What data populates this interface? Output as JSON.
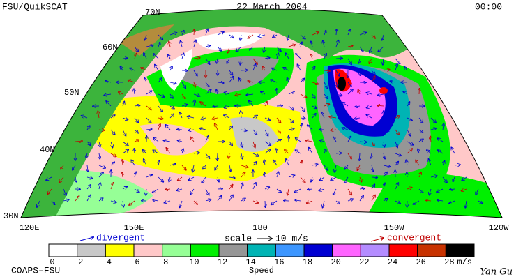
{
  "header": {
    "left": "FSU/QuikSCAT",
    "center": "22 March 2004",
    "right": "00:00"
  },
  "map": {
    "lat_labels": [
      "70N",
      "60N",
      "50N",
      "40N",
      "30N"
    ],
    "lon_labels": [
      "120E",
      "150E",
      "180",
      "150W",
      "120W"
    ]
  },
  "legend": {
    "divergent": "divergent",
    "scale": "scale",
    "scale_value": "10 m/s",
    "convergent": "convergent"
  },
  "colorbar": {
    "ticks": [
      0,
      2,
      4,
      6,
      8,
      10,
      12,
      14,
      16,
      18,
      20,
      22,
      24,
      26,
      28
    ],
    "colors": [
      "#ffffff",
      "#c8c8c8",
      "#ffff00",
      "#ffc8c8",
      "#96ff96",
      "#00f000",
      "#969696",
      "#00b4b4",
      "#3c96ff",
      "#0000d2",
      "#ff64ff",
      "#b48cff",
      "#ff0000",
      "#c83200",
      "#000000"
    ],
    "unit": "m/s",
    "label": "Speed"
  },
  "footer": {
    "left": "COAPS–FSU",
    "right": "Yan Gu"
  }
}
